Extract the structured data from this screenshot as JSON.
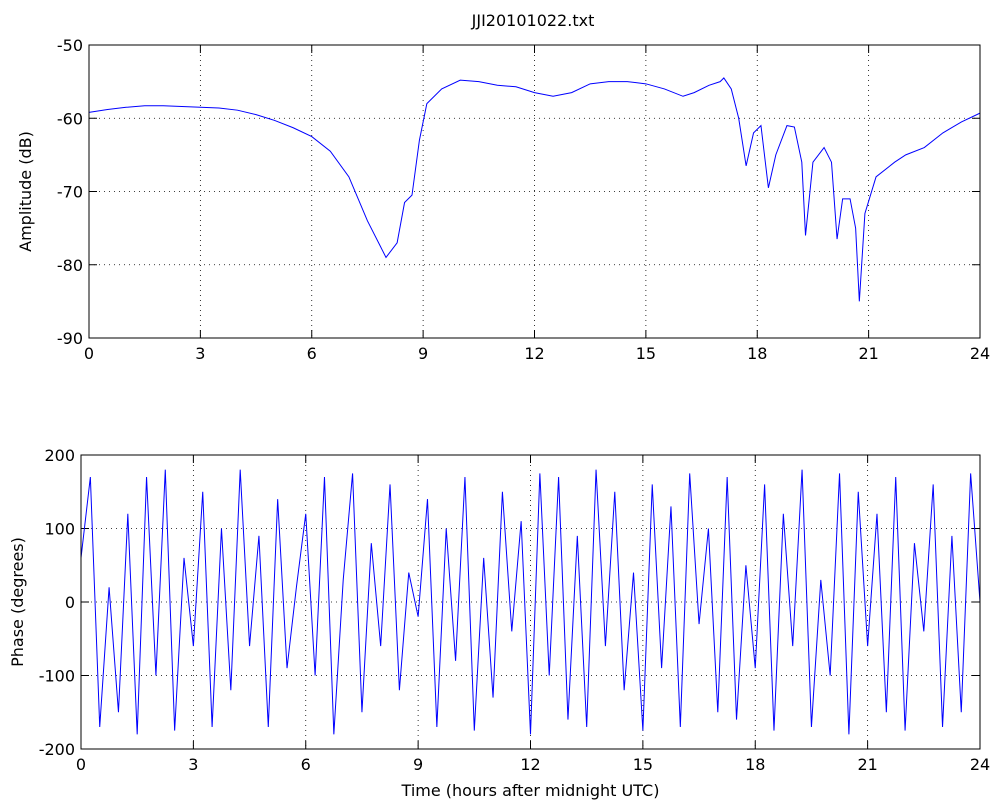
{
  "chart_data": [
    {
      "type": "line",
      "title": "JJI20101022.txt",
      "y_label": "Amplitude (dB)",
      "color": "#0000ff",
      "grid": true,
      "xlim": [
        0,
        24
      ],
      "xticks": [
        0,
        3,
        6,
        9,
        12,
        15,
        18,
        21,
        24
      ],
      "ylim": [
        -90,
        -50
      ],
      "yticks": [
        -90,
        -80,
        -70,
        -60,
        -50
      ],
      "x": [
        0,
        0.5,
        1,
        1.5,
        2,
        2.5,
        3,
        3.5,
        4,
        4.5,
        5,
        5.5,
        6,
        6.5,
        7,
        7.5,
        8,
        8.3,
        8.5,
        8.7,
        8.9,
        9.1,
        9.5,
        10,
        10.5,
        11,
        11.5,
        12,
        12.5,
        13,
        13.5,
        14,
        14.5,
        15,
        15.5,
        16,
        16.3,
        16.7,
        17,
        17.1,
        17.3,
        17.5,
        17.7,
        17.9,
        18.1,
        18.3,
        18.5,
        18.8,
        19,
        19.2,
        19.3,
        19.5,
        19.8,
        20,
        20.15,
        20.3,
        20.5,
        20.65,
        20.75,
        20.9,
        21.2,
        21.7,
        22,
        22.5,
        23,
        23.5,
        24
      ],
      "values": [
        -59.2,
        -58.8,
        -58.5,
        -58.3,
        -58.3,
        -58.4,
        -58.5,
        -58.6,
        -58.9,
        -59.5,
        -60.3,
        -61.3,
        -62.5,
        -64.5,
        -68,
        -74,
        -79,
        -77,
        -71.5,
        -70.5,
        -63,
        -58,
        -56,
        -54.8,
        -55,
        -55.5,
        -55.7,
        -56.5,
        -57,
        -56.5,
        -55.3,
        -55,
        -55,
        -55.3,
        -56,
        -57,
        -56.5,
        -55.5,
        -55,
        -54.5,
        -56,
        -60,
        -66.5,
        -62,
        -61,
        -69.5,
        -65,
        -61,
        -61.2,
        -66,
        -76,
        -66,
        -64,
        -66,
        -76.5,
        -71,
        -71,
        -75,
        -85,
        -73,
        -68,
        -66,
        -65,
        -64,
        -62,
        -60.5,
        -59.3
      ]
    },
    {
      "type": "line",
      "x_label": "Time (hours after midnight UTC)",
      "y_label": "Phase (degrees)",
      "color": "#0000ff",
      "grid": true,
      "xlim": [
        0,
        24
      ],
      "xticks": [
        0,
        3,
        6,
        9,
        12,
        15,
        18,
        21,
        24
      ],
      "ylim": [
        -200,
        200
      ],
      "yticks": [
        -200,
        -100,
        0,
        100,
        200
      ],
      "x": [
        0,
        0.25,
        0.5,
        0.75,
        1,
        1.25,
        1.5,
        1.75,
        2,
        2.25,
        2.5,
        2.75,
        3,
        3.25,
        3.5,
        3.75,
        4,
        4.25,
        4.5,
        4.75,
        5,
        5.25,
        5.5,
        5.75,
        6,
        6.25,
        6.5,
        6.75,
        7,
        7.25,
        7.5,
        7.75,
        8,
        8.25,
        8.5,
        8.75,
        9,
        9.25,
        9.5,
        9.75,
        10,
        10.25,
        10.5,
        10.75,
        11,
        11.25,
        11.5,
        11.75,
        12,
        12.25,
        12.5,
        12.75,
        13,
        13.25,
        13.5,
        13.75,
        14,
        14.25,
        14.5,
        14.75,
        15,
        15.25,
        15.5,
        15.75,
        16,
        16.25,
        16.5,
        16.75,
        17,
        17.25,
        17.5,
        17.75,
        18,
        18.25,
        18.5,
        18.75,
        19,
        19.25,
        19.5,
        19.75,
        20,
        20.25,
        20.5,
        20.75,
        21,
        21.25,
        21.5,
        21.75,
        22,
        22.25,
        22.5,
        22.75,
        23,
        23.25,
        23.5,
        23.75,
        24
      ],
      "values": [
        60,
        170,
        -170,
        20,
        -150,
        120,
        -180,
        170,
        -100,
        180,
        -175,
        60,
        -60,
        150,
        -170,
        100,
        -120,
        180,
        -60,
        90,
        -170,
        140,
        -90,
        20,
        120,
        -100,
        170,
        -180,
        30,
        175,
        -150,
        80,
        -60,
        160,
        -120,
        40,
        -20,
        140,
        -170,
        100,
        -80,
        170,
        -175,
        60,
        -130,
        150,
        -40,
        110,
        -180,
        175,
        -100,
        170,
        -160,
        90,
        -170,
        180,
        -60,
        150,
        -120,
        40,
        -175,
        160,
        -90,
        130,
        -170,
        175,
        -30,
        100,
        -150,
        170,
        -160,
        50,
        -90,
        160,
        -175,
        120,
        -60,
        180,
        -170,
        30,
        -100,
        175,
        -180,
        150,
        -60,
        120,
        -150,
        170,
        -175,
        80,
        -40,
        160,
        -170,
        90,
        -150,
        175,
        0
      ]
    }
  ]
}
